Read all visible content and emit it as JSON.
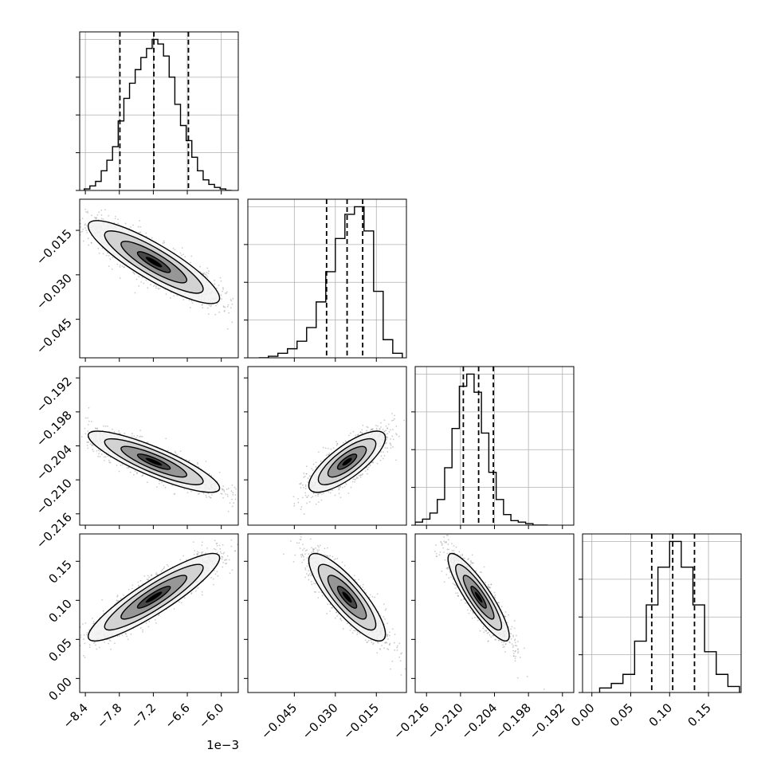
{
  "figure": {
    "type": "corner-plot"
  },
  "colors": {
    "line": "#000000",
    "grid": "#b0b0b0",
    "scatter": "#9a9a9a",
    "density_dark": "#000000",
    "density_light": "#ffffff"
  },
  "x_axis_offset_label": "1e−3",
  "chart_data": [
    {
      "type": "histogram",
      "parameter_index": 0,
      "bins": [
        -8.42,
        -8.32,
        -8.22,
        -8.12,
        -8.02,
        -7.92,
        -7.82,
        -7.72,
        -7.62,
        -7.52,
        -7.42,
        -7.32,
        -7.22,
        -7.12,
        -7.02,
        -6.92,
        -6.82,
        -6.72,
        -6.62,
        -6.52,
        -6.42,
        -6.32,
        -6.22,
        -6.12,
        -6.02,
        -5.92,
        -5.82
      ],
      "counts": [
        0.01,
        0.03,
        0.06,
        0.13,
        0.2,
        0.29,
        0.46,
        0.61,
        0.71,
        0.8,
        0.88,
        0.94,
        1.0,
        0.97,
        0.89,
        0.75,
        0.57,
        0.43,
        0.33,
        0.22,
        0.13,
        0.07,
        0.04,
        0.02,
        0.01,
        0.0
      ],
      "quantiles": [
        -7.79,
        -7.19,
        -6.58
      ],
      "xlim": [
        -8.5,
        -5.7
      ],
      "x_ticks": [
        -8.4,
        -7.8,
        -7.2,
        -6.6,
        -6.0
      ],
      "x_tick_labels": [
        "−8.4",
        "−7.8",
        "−7.2",
        "−6.6",
        "−6.0"
      ],
      "x_scale_label": "1e−3"
    },
    {
      "type": "histogram",
      "parameter_index": 1,
      "bins": [
        -0.058,
        -0.0545,
        -0.051,
        -0.0475,
        -0.044,
        -0.0405,
        -0.037,
        -0.0335,
        -0.03,
        -0.0265,
        -0.023,
        -0.0195,
        -0.016,
        -0.0125,
        -0.009,
        -0.0055
      ],
      "counts": [
        0.0,
        0.01,
        0.03,
        0.06,
        0.11,
        0.2,
        0.37,
        0.57,
        0.79,
        0.95,
        1.0,
        0.84,
        0.44,
        0.12,
        0.03
      ],
      "quantiles": [
        -0.0332,
        -0.0257,
        -0.02
      ],
      "xlim": [
        -0.062,
        -0.004
      ],
      "x_ticks": [
        -0.045,
        -0.03,
        -0.015
      ],
      "x_tick_labels": [
        "−0.045",
        "−0.030",
        "−0.015"
      ]
    },
    {
      "type": "histogram",
      "parameter_index": 2,
      "bins": [
        -0.218,
        -0.2167,
        -0.2154,
        -0.2141,
        -0.2128,
        -0.2115,
        -0.2102,
        -0.2089,
        -0.2076,
        -0.2063,
        -0.205,
        -0.2037,
        -0.2024,
        -0.2011,
        -0.1998,
        -0.1985,
        -0.1972,
        -0.1959,
        -0.1946
      ],
      "counts": [
        0.02,
        0.04,
        0.08,
        0.17,
        0.38,
        0.64,
        0.92,
        1.0,
        0.88,
        0.61,
        0.35,
        0.17,
        0.07,
        0.03,
        0.02,
        0.01,
        0.0,
        0.0
      ],
      "quantiles": [
        -0.2095,
        -0.2068,
        -0.2042
      ],
      "xlim": [
        -0.218,
        -0.19
      ],
      "x_ticks": [
        -0.216,
        -0.21,
        -0.204,
        -0.198,
        -0.192
      ],
      "x_tick_labels": [
        "−0.216",
        "−0.210",
        "−0.204",
        "−0.198",
        "−0.192"
      ]
    },
    {
      "type": "histogram",
      "parameter_index": 3,
      "bins": [
        0.01,
        0.025,
        0.04,
        0.055,
        0.07,
        0.085,
        0.1,
        0.115,
        0.13,
        0.145,
        0.16,
        0.175,
        0.19
      ],
      "counts": [
        0.03,
        0.06,
        0.12,
        0.34,
        0.58,
        0.83,
        1.0,
        0.83,
        0.58,
        0.27,
        0.12,
        0.04
      ],
      "quantiles": [
        0.077,
        0.104,
        0.132
      ],
      "xlim": [
        -0.012,
        0.192
      ],
      "x_ticks": [
        0.0,
        0.05,
        0.1,
        0.15
      ],
      "x_tick_labels": [
        "0.00",
        "0.05",
        "0.10",
        "0.15"
      ]
    },
    {
      "type": "scatter",
      "parameters": [
        0,
        1
      ],
      "x_mean": -7.19,
      "y_mean": -0.0257,
      "x_sd": 0.58,
      "y_sd": 0.007,
      "rho": -0.87,
      "contour_levels_sigma": [
        0.5,
        1.0,
        1.5,
        2.0
      ],
      "xlim": [
        -8.5,
        -5.7
      ],
      "ylim": [
        -0.058,
        -0.0045
      ],
      "y_ticks": [
        -0.045,
        -0.03,
        -0.015
      ],
      "y_tick_labels": [
        "−0.045",
        "−0.030",
        "−0.015"
      ]
    },
    {
      "type": "scatter",
      "parameters": [
        0,
        2
      ],
      "x_mean": -7.19,
      "y_mean": -0.2068,
      "x_sd": 0.58,
      "y_sd": 0.0027,
      "rho": -0.86,
      "contour_levels_sigma": [
        0.5,
        1.0,
        1.5,
        2.0
      ],
      "xlim": [
        -8.5,
        -5.7
      ],
      "ylim": [
        -0.218,
        -0.19
      ],
      "y_ticks": [
        -0.216,
        -0.21,
        -0.204,
        -0.198,
        -0.192
      ],
      "y_tick_labels": [
        "−0.216",
        "−0.210",
        "−0.204",
        "−0.198",
        "−0.192"
      ]
    },
    {
      "type": "scatter",
      "parameters": [
        1,
        2
      ],
      "x_mean": -0.0257,
      "y_mean": -0.2068,
      "x_sd": 0.007,
      "y_sd": 0.0027,
      "rho": 0.78,
      "contour_levels_sigma": [
        0.5,
        1.0,
        1.5,
        2.0
      ],
      "xlim": [
        -0.062,
        -0.004
      ],
      "ylim": [
        -0.218,
        -0.19
      ]
    },
    {
      "type": "scatter",
      "parameters": [
        0,
        3
      ],
      "x_mean": -7.19,
      "y_mean": 0.104,
      "x_sd": 0.58,
      "y_sd": 0.028,
      "rho": 0.9,
      "contour_levels_sigma": [
        0.5,
        1.0,
        1.5,
        2.0
      ],
      "xlim": [
        -8.5,
        -5.7
      ],
      "ylim": [
        -0.018,
        0.185
      ],
      "y_ticks": [
        0.0,
        0.05,
        0.1,
        0.15
      ],
      "y_tick_labels": [
        "0.00",
        "0.05",
        "0.10",
        "0.15"
      ]
    },
    {
      "type": "scatter",
      "parameters": [
        1,
        3
      ],
      "x_mean": -0.0257,
      "y_mean": 0.104,
      "x_sd": 0.007,
      "y_sd": 0.028,
      "rho": -0.84,
      "contour_levels_sigma": [
        0.5,
        1.0,
        1.5,
        2.0
      ],
      "xlim": [
        -0.062,
        -0.004
      ],
      "ylim": [
        -0.018,
        0.185
      ]
    },
    {
      "type": "scatter",
      "parameters": [
        2,
        3
      ],
      "x_mean": -0.2068,
      "y_mean": 0.104,
      "x_sd": 0.0027,
      "y_sd": 0.028,
      "rho": -0.88,
      "contour_levels_sigma": [
        0.5,
        1.0,
        1.5,
        2.0
      ],
      "xlim": [
        -0.218,
        -0.19
      ],
      "ylim": [
        -0.018,
        0.185
      ]
    }
  ]
}
